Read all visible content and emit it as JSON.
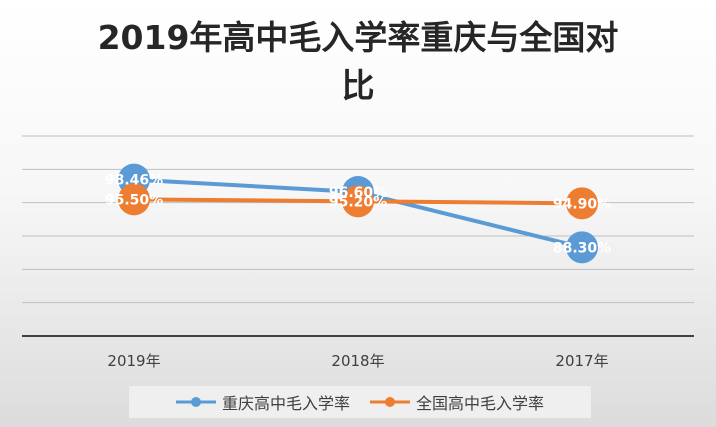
{
  "chart_data": {
    "type": "line",
    "title_lines": [
      "2019年高中毛入学率重庆与全国对",
      "比"
    ],
    "categories": [
      "2019年",
      "2018年",
      "2017年"
    ],
    "series": [
      {
        "name": "重庆高中毛入学率",
        "values": [
          98.46,
          96.6,
          88.3
        ],
        "labels": [
          "98.46%",
          "96.60%",
          "88.30%"
        ],
        "color": "#5b9bd5"
      },
      {
        "name": "全国高中毛入学率",
        "values": [
          95.5,
          95.2,
          94.9
        ],
        "labels": [
          "95.50%",
          "95.20%",
          "94.90%"
        ],
        "color": "#ed7d31"
      }
    ],
    "ylim": [
      75,
      105
    ],
    "grid": true,
    "legend_position": "bottom"
  }
}
